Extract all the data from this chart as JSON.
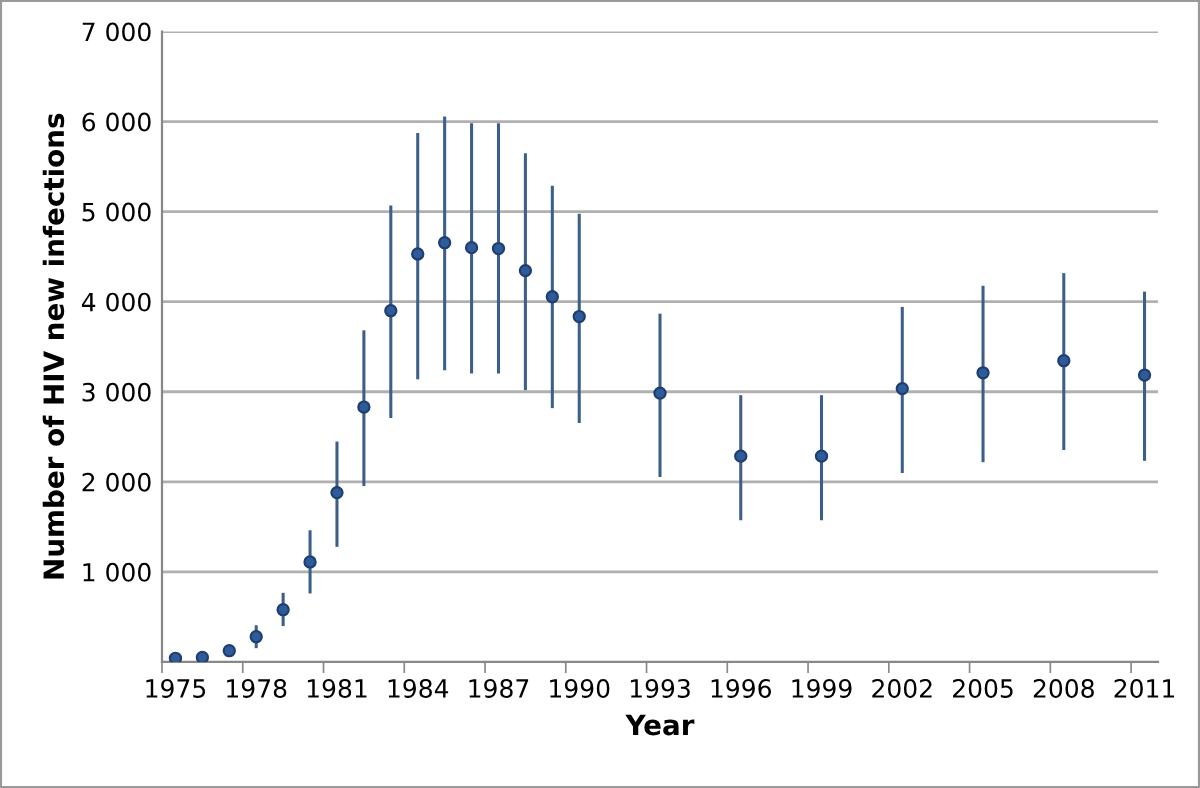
{
  "chart_data": {
    "type": "scatter",
    "xlabel": "Year",
    "ylabel": "Number of HIV new infections",
    "x": [
      1975,
      1976,
      1977,
      1978,
      1979,
      1980,
      1981,
      1982,
      1983,
      1984,
      1985,
      1986,
      1987,
      1988,
      1989,
      1990,
      1993,
      1996,
      1999,
      2002,
      2005,
      2008,
      2011
    ],
    "series": [
      {
        "color": "#2e5c9a",
        "values": [
          40,
          50,
          125,
          280,
          580,
          1110,
          1880,
          2830,
          3900,
          4530,
          4655,
          4600,
          4590,
          4345,
          4055,
          3835,
          2985,
          2285,
          2285,
          3035,
          3210,
          3345,
          3185
        ],
        "errors": [
          null,
          null,
          null,
          [
            170,
            390
          ],
          [
            415,
            750
          ],
          [
            777,
            1445
          ],
          [
            1295,
            2430
          ],
          [
            1970,
            3665
          ],
          [
            2725,
            5050
          ],
          [
            3155,
            5855
          ],
          [
            3255,
            6040
          ],
          [
            3220,
            5965
          ],
          [
            3220,
            5965
          ],
          [
            3035,
            5630
          ],
          [
            2835,
            5270
          ],
          [
            2670,
            4960
          ],
          [
            2070,
            3850
          ],
          [
            1590,
            2945
          ],
          [
            1590,
            2945
          ],
          [
            2115,
            3925
          ],
          [
            2235,
            4160
          ],
          [
            2370,
            4300
          ],
          [
            2250,
            4095
          ]
        ]
      }
    ],
    "xlim": [
      1974.5,
      2011.5
    ],
    "xticks": [
      1975,
      1978,
      1981,
      1984,
      1987,
      1990,
      1993,
      1996,
      1999,
      2002,
      2005,
      2008,
      2011,
      {
        "value": 1974.5,
        "label": null
      },
      {
        "value": 1977.5,
        "label": null
      },
      {
        "value": 1980.5,
        "label": null
      },
      {
        "value": 1983.5,
        "label": null
      },
      {
        "value": 1986.5,
        "label": null
      },
      {
        "value": 1989.5,
        "label": null
      },
      {
        "value": 1992.5,
        "label": null
      },
      {
        "value": 1995.5,
        "label": null
      },
      {
        "value": 1998.5,
        "label": null
      },
      {
        "value": 2001.5,
        "label": null
      },
      {
        "value": 2004.5,
        "label": null
      },
      {
        "value": 2007.5,
        "label": null
      },
      {
        "value": 2010.5,
        "label": null
      }
    ],
    "ylim": [
      0,
      7000
    ],
    "yticks": [
      {
        "value": 1000,
        "label": "1 000"
      },
      {
        "value": 2000,
        "label": "2 000"
      },
      {
        "value": 3000,
        "label": "3 000"
      },
      {
        "value": 4000,
        "label": "4 000"
      },
      {
        "value": 5000,
        "label": "5 000"
      },
      {
        "value": 6000,
        "label": "6 000"
      },
      {
        "value": 7000,
        "label": "7 000"
      }
    ],
    "grid": "y",
    "marker": "circle"
  }
}
